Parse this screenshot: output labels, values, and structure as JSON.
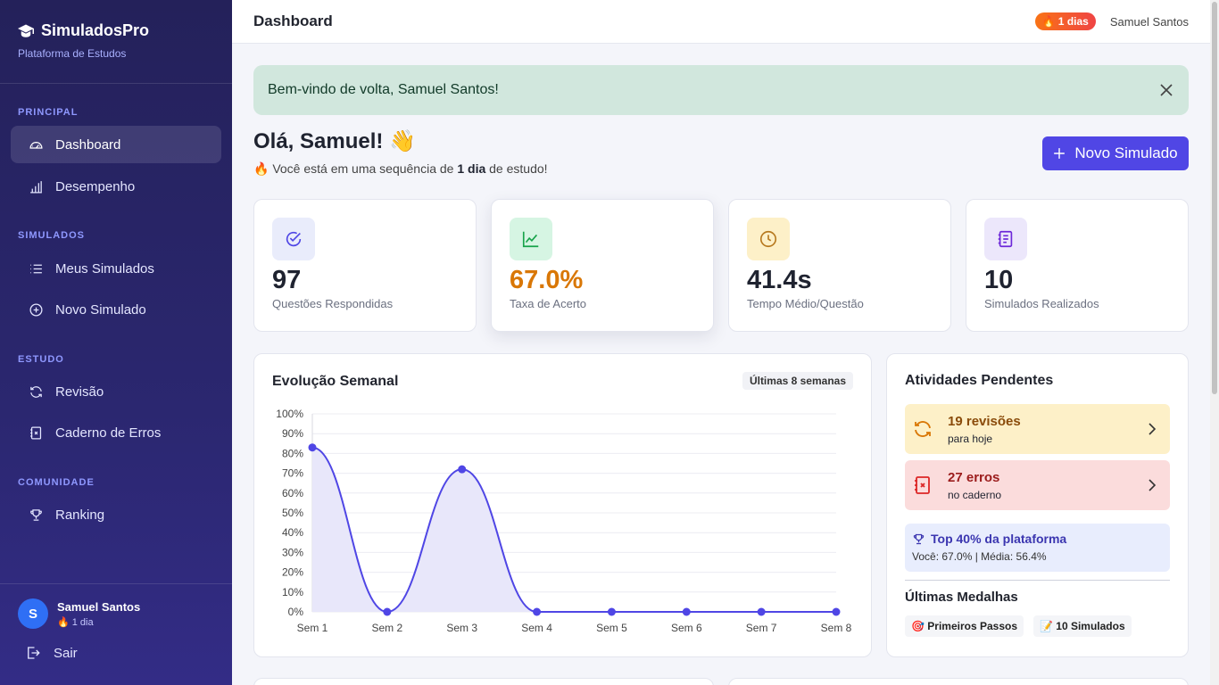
{
  "app": {
    "name": "SimuladosPro",
    "subtitle": "Plataforma de Estudos"
  },
  "sidebar": {
    "sections": [
      {
        "label": "PRINCIPAL"
      },
      {
        "label": "SIMULADOS"
      },
      {
        "label": "ESTUDO"
      },
      {
        "label": "COMUNIDADE"
      }
    ],
    "items": [
      {
        "label": "Dashboard",
        "icon": "gauge-icon",
        "active": true
      },
      {
        "label": "Desempenho",
        "icon": "bar-chart-icon"
      },
      {
        "label": "Meus Simulados",
        "icon": "list-icon"
      },
      {
        "label": "Novo Simulado",
        "icon": "plus-circle-icon"
      },
      {
        "label": "Revisão",
        "icon": "refresh-icon"
      },
      {
        "label": "Caderno de Erros",
        "icon": "error-notebook-icon"
      },
      {
        "label": "Ranking",
        "icon": "trophy-icon"
      }
    ],
    "user": {
      "initial": "S",
      "name": "Samuel Santos",
      "streak": "🔥 1 dia"
    },
    "logout_label": "Sair"
  },
  "topbar": {
    "title": "Dashboard",
    "streak_badge": "🔥 1 dias",
    "user_name": "Samuel Santos"
  },
  "alert": {
    "message": "Bem-vindo de volta, Samuel Santos!"
  },
  "greeting": {
    "title": "Olá, Samuel! 👋",
    "pre": "🔥 Você está em uma sequência de ",
    "bold": "1 dia",
    "post": " de estudo!"
  },
  "new_button_label": "Novo Simulado",
  "stats": [
    {
      "value": "97",
      "label": "Questões Respondidas",
      "icon": "check-badge-icon",
      "color": "#4f46e5",
      "bg": "#e9ecfb"
    },
    {
      "value": "67.0%",
      "label": "Taxa de Acerto",
      "icon": "trend-up-icon",
      "color": "#d97706",
      "bg": "#d6f5e3"
    },
    {
      "value": "41.4s",
      "label": "Tempo Médio/Questão",
      "icon": "clock-icon",
      "color": "#1f2330",
      "bg": "#fdf0c8"
    },
    {
      "value": "10",
      "label": "Simulados Realizados",
      "icon": "notebook-icon",
      "color": "#1f2330",
      "bg": "#ece7fb"
    }
  ],
  "chart_card": {
    "title": "Evolução Semanal",
    "period": "Últimas 8 semanas"
  },
  "chart_data": {
    "type": "area",
    "categories": [
      "Sem 1",
      "Sem 2",
      "Sem 3",
      "Sem 4",
      "Sem 5",
      "Sem 6",
      "Sem 7",
      "Sem 8"
    ],
    "series": [
      {
        "values": [
          83,
          0,
          72,
          0,
          0,
          0,
          0,
          0
        ]
      }
    ],
    "ylim": [
      0,
      100
    ],
    "yticks": [
      "0%",
      "10%",
      "20%",
      "30%",
      "40%",
      "50%",
      "60%",
      "70%",
      "80%",
      "90%",
      "100%"
    ],
    "line_color": "#4f46e5",
    "fill_color": "#e8e7fa",
    "grid": true
  },
  "pending": {
    "title": "Atividades Pendentes",
    "items": [
      {
        "title": "19 revisões",
        "sub": "para hoje",
        "icon": "refresh-icon",
        "bg": "#fdf0c8",
        "color": "#8a4b0a",
        "icon_color": "#d97706"
      },
      {
        "title": "27 erros",
        "sub": "no caderno",
        "icon": "error-notebook-icon",
        "bg": "#fbdcdc",
        "color": "#9b1c1c",
        "icon_color": "#dc2626"
      }
    ],
    "ranking": {
      "title": "Top 40% da plataforma",
      "sub": "Você: 67.0% | Média: 56.4%"
    },
    "medals_title": "Últimas Medalhas",
    "medals": [
      {
        "label": "🎯 Primeiros Passos"
      },
      {
        "label": "📝 10 Simulados"
      }
    ]
  }
}
